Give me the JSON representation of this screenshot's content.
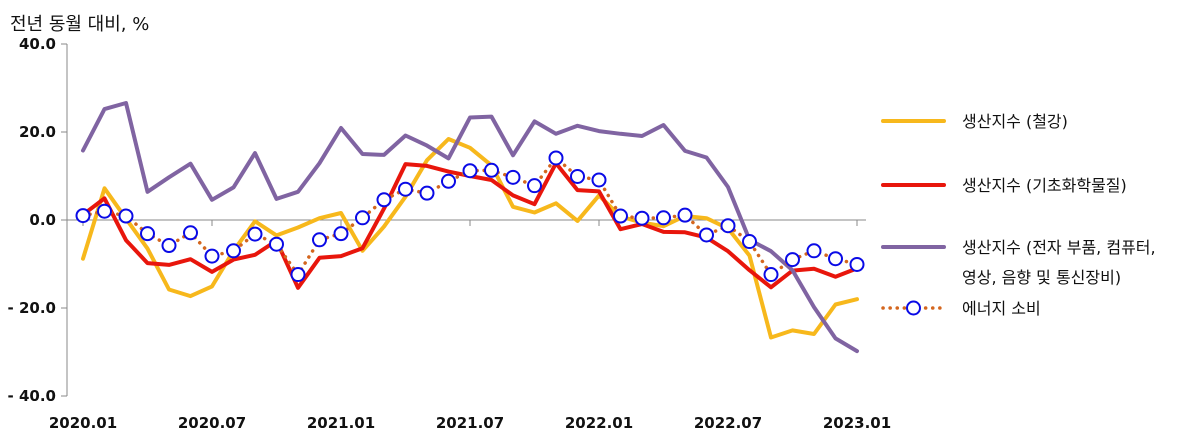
{
  "chart_data": {
    "type": "line",
    "title": "",
    "ylabel": "전년 동월 대비, %",
    "xlabel": "",
    "ylim": [
      -40,
      40
    ],
    "y_ticks": [
      "40.0",
      "20.0",
      "0.0",
      "- 20.0",
      "- 40.0"
    ],
    "y_tick_values": [
      40,
      20,
      0,
      -20,
      -40
    ],
    "x": [
      "2020.01",
      "2020.02",
      "2020.03",
      "2020.04",
      "2020.05",
      "2020.06",
      "2020.07",
      "2020.08",
      "2020.09",
      "2020.10",
      "2020.11",
      "2020.12",
      "2021.01",
      "2021.02",
      "2021.03",
      "2021.04",
      "2021.05",
      "2021.06",
      "2021.07",
      "2021.08",
      "2021.09",
      "2021.10",
      "2021.11",
      "2021.12",
      "2022.01",
      "2022.02",
      "2022.03",
      "2022.04",
      "2022.05",
      "2022.06",
      "2022.07",
      "2022.08",
      "2022.09",
      "2022.10",
      "2022.11",
      "2022.12",
      "2023.01"
    ],
    "x_tick_labels": [
      "2020.01",
      "2020.07",
      "2021.01",
      "2021.07",
      "2022.01",
      "2022.07",
      "2023.01"
    ],
    "x_tick_indices": [
      0,
      6,
      12,
      18,
      24,
      30,
      36
    ],
    "grid": false,
    "legend_position": "right",
    "series": [
      {
        "name": "생산지수 (철강)",
        "color": "#F7B81C",
        "style": "line",
        "values": [
          -8.8,
          7.2,
          0.3,
          -6.5,
          -15.8,
          -17.3,
          -15.1,
          -7.0,
          -0.3,
          -3.5,
          -1.7,
          0.4,
          1.6,
          -7.0,
          -1.5,
          5.3,
          13.6,
          18.4,
          16.4,
          12.4,
          3.0,
          1.7,
          3.8,
          -0.2,
          5.6,
          0.8,
          -0.6,
          -1.4,
          0.9,
          0.4,
          -1.9,
          -8.1,
          -26.7,
          -25.1,
          -25.9,
          -19.2,
          -18.0
        ]
      },
      {
        "name": "생산지수 (기초화학물질)",
        "color": "#E8160C",
        "style": "line",
        "values": [
          1.2,
          4.9,
          -4.6,
          -9.8,
          -10.2,
          -8.9,
          -11.8,
          -9.0,
          -7.9,
          -4.7,
          -15.4,
          -8.6,
          -8.2,
          -6.4,
          2.6,
          12.7,
          12.3,
          11.0,
          10.0,
          9.1,
          5.6,
          3.6,
          12.9,
          6.8,
          6.5,
          -2.1,
          -0.9,
          -2.7,
          -2.8,
          -4.0,
          -7.1,
          -11.4,
          -15.3,
          -11.5,
          -11.1,
          -12.9,
          -11.0
        ]
      },
      {
        "name": "생산지수 (전자 부품, 컴퓨터, 영상, 음향 및 통신장비)",
        "color": "#8064A2",
        "style": "line",
        "values": [
          15.8,
          25.2,
          26.6,
          6.4,
          9.7,
          12.8,
          4.6,
          7.4,
          15.2,
          4.8,
          6.4,
          12.9,
          20.9,
          15.0,
          14.8,
          19.2,
          16.9,
          14.0,
          23.3,
          23.5,
          14.7,
          22.4,
          19.6,
          21.4,
          20.2,
          19.6,
          19.1,
          21.6,
          15.7,
          14.2,
          7.5,
          -4.5,
          -7.1,
          -11.4,
          -19.8,
          -26.9,
          -29.8
        ]
      },
      {
        "name": "에너지 소비",
        "color": "#0A0AE6",
        "dot_color": "#D4661E",
        "style": "dotted-marker",
        "values": [
          1.0,
          2.0,
          0.9,
          -3.1,
          -5.8,
          -2.9,
          -8.2,
          -7.0,
          -3.2,
          -5.5,
          -12.4,
          -4.5,
          -3.1,
          0.5,
          4.6,
          7.0,
          6.1,
          8.8,
          11.2,
          11.3,
          9.7,
          7.8,
          14.1,
          9.9,
          9.1,
          0.9,
          0.4,
          0.5,
          1.1,
          -3.4,
          -1.3,
          -4.9,
          -12.4,
          -9.0,
          -7.0,
          -8.8,
          -10.1
        ]
      }
    ]
  }
}
